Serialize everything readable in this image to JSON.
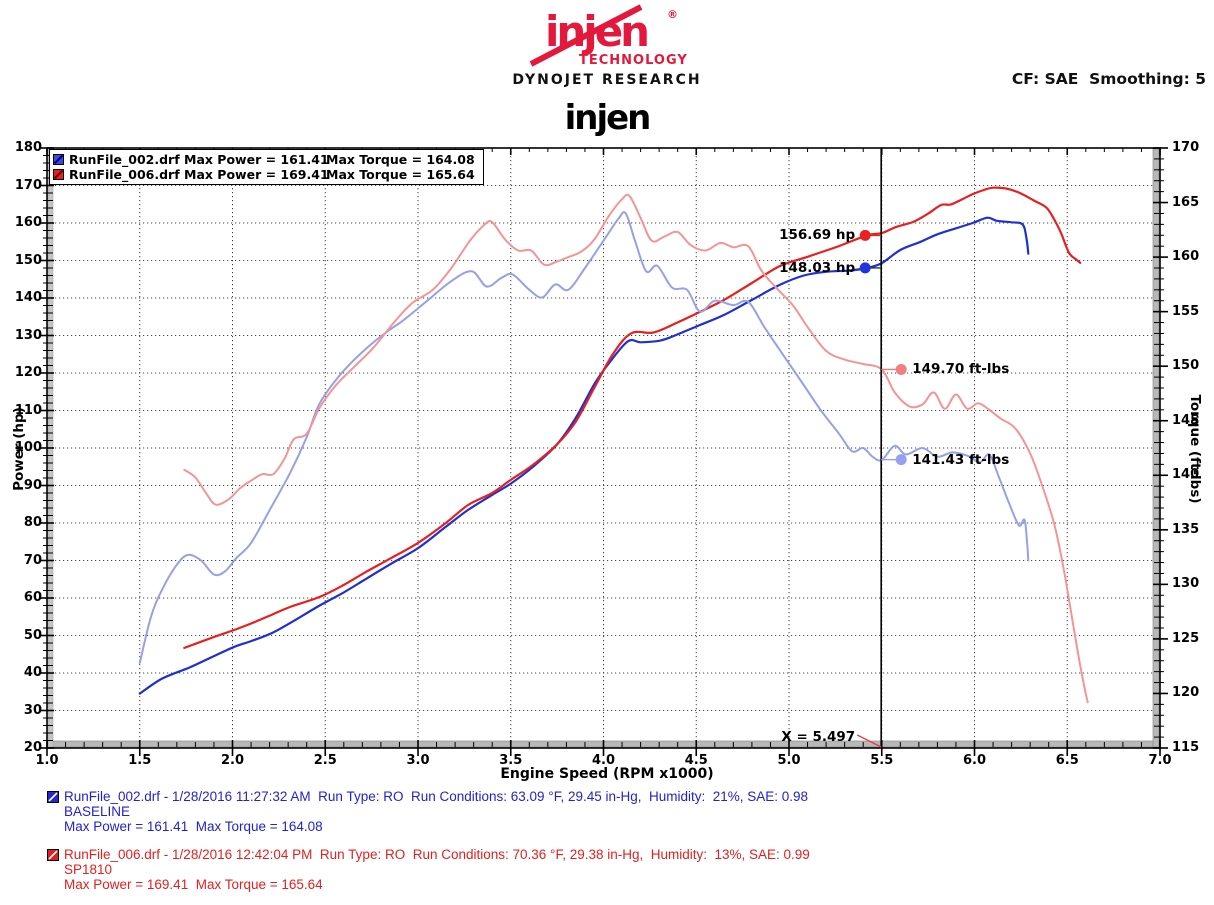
{
  "header": {
    "logo_text": "injen",
    "logo_mark": "®",
    "logo_sub": "TECHNOLOGY",
    "research": "DYNOJET RESEARCH",
    "settings": "CF: SAE  Smoothing: 5",
    "title": "injen",
    "brand_red": "#e4173c"
  },
  "legend": {
    "rows": [
      {
        "label": "RunFile_002.drf Max Power = 161.41",
        "torque_label": "Max Torque = 164.08",
        "icon_color": "#3a4ae0",
        "icon_diag": "#000078"
      },
      {
        "label": "RunFile_006.drf Max Power = 169.41",
        "torque_label": "Max Torque = 165.64",
        "icon_color": "#e82020",
        "icon_diag": "#6e0000"
      }
    ]
  },
  "chart_data": {
    "type": "line",
    "xlabel": "Engine Speed (RPM x1000)",
    "ylabel_left": "Power (hp)",
    "ylabel_right": "Torque (ft-lbs)",
    "x_range": [
      1.0,
      7.0
    ],
    "power_range": [
      20,
      180
    ],
    "torque_range": [
      115,
      170
    ],
    "grid": "dotted",
    "x_tick_labels": [
      "1.0",
      "1.5",
      "2.0",
      "2.5",
      "3.0",
      "3.5",
      "4.0",
      "4.5",
      "5.0",
      "5.5",
      "6.0",
      "6.5",
      "7.0"
    ],
    "power_tick_labels": [
      "20",
      "30",
      "40",
      "50",
      "60",
      "70",
      "80",
      "90",
      "100",
      "110",
      "120",
      "130",
      "140",
      "150",
      "160",
      "170",
      "180"
    ],
    "torque_tick_labels": [
      "115",
      "120",
      "125",
      "130",
      "135",
      "140",
      "145",
      "150",
      "155",
      "160",
      "165",
      "170"
    ],
    "series": [
      {
        "name": "power_baseline",
        "run": "RunFile_002.drf",
        "axis": "power",
        "color": "#2030d0",
        "width": 2.2,
        "max": 161.41,
        "points": [
          [
            1.5,
            34.5
          ],
          [
            1.62,
            38.5
          ],
          [
            1.77,
            41.5
          ],
          [
            1.9,
            44.5
          ],
          [
            2.01,
            47
          ],
          [
            2.1,
            48.5
          ],
          [
            2.21,
            50.6
          ],
          [
            2.31,
            53.3
          ],
          [
            2.47,
            58
          ],
          [
            2.6,
            61.5
          ],
          [
            2.71,
            64.8
          ],
          [
            2.85,
            69
          ],
          [
            3.0,
            73.3
          ],
          [
            3.15,
            79
          ],
          [
            3.27,
            83.5
          ],
          [
            3.4,
            87.5
          ],
          [
            3.5,
            90.5
          ],
          [
            3.62,
            95
          ],
          [
            3.75,
            101
          ],
          [
            3.85,
            108
          ],
          [
            3.95,
            117
          ],
          [
            4.02,
            122
          ],
          [
            4.13,
            128.4
          ],
          [
            4.2,
            128.2
          ],
          [
            4.3,
            128.6
          ],
          [
            4.37,
            129.7
          ],
          [
            4.52,
            132.8
          ],
          [
            4.65,
            135.5
          ],
          [
            4.8,
            139.5
          ],
          [
            4.95,
            143.5
          ],
          [
            5.08,
            146
          ],
          [
            5.2,
            147
          ],
          [
            5.32,
            147.3
          ],
          [
            5.42,
            148.0
          ],
          [
            5.5,
            149.3
          ],
          [
            5.6,
            152.8
          ],
          [
            5.71,
            155
          ],
          [
            5.8,
            157
          ],
          [
            5.9,
            158.6
          ],
          [
            5.99,
            160
          ],
          [
            6.07,
            161.4
          ],
          [
            6.12,
            160.6
          ],
          [
            6.2,
            160.2
          ],
          [
            6.26,
            159.6
          ],
          [
            6.28,
            156
          ],
          [
            6.29,
            151.8
          ]
        ]
      },
      {
        "name": "power_sp1810",
        "run": "RunFile_006.drf",
        "axis": "power",
        "color": "#e81f1f",
        "width": 2.2,
        "max": 169.41,
        "points": [
          [
            1.74,
            46.7
          ],
          [
            1.9,
            49.6
          ],
          [
            2.01,
            51.5
          ],
          [
            2.1,
            53.2
          ],
          [
            2.21,
            55.5
          ],
          [
            2.31,
            57.6
          ],
          [
            2.47,
            60.3
          ],
          [
            2.6,
            63.5
          ],
          [
            2.71,
            66.7
          ],
          [
            2.85,
            70.5
          ],
          [
            3.0,
            74.7
          ],
          [
            3.15,
            80
          ],
          [
            3.27,
            84.8
          ],
          [
            3.4,
            88
          ],
          [
            3.5,
            91.5
          ],
          [
            3.62,
            95.5
          ],
          [
            3.75,
            101
          ],
          [
            3.85,
            107
          ],
          [
            3.95,
            116
          ],
          [
            4.05,
            125
          ],
          [
            4.15,
            130.6
          ],
          [
            4.27,
            130.8
          ],
          [
            4.4,
            133.5
          ],
          [
            4.52,
            136.3
          ],
          [
            4.65,
            139.5
          ],
          [
            4.8,
            144
          ],
          [
            4.95,
            148.5
          ],
          [
            5.1,
            151
          ],
          [
            5.25,
            153.5
          ],
          [
            5.42,
            156.7
          ],
          [
            5.5,
            157.3
          ],
          [
            5.58,
            159
          ],
          [
            5.67,
            160.3
          ],
          [
            5.75,
            162.5
          ],
          [
            5.82,
            164.8
          ],
          [
            5.87,
            164.9
          ],
          [
            5.92,
            166
          ],
          [
            5.99,
            167.7
          ],
          [
            6.05,
            168.8
          ],
          [
            6.1,
            169.4
          ],
          [
            6.17,
            169.2
          ],
          [
            6.24,
            168.1
          ],
          [
            6.32,
            166
          ],
          [
            6.39,
            164
          ],
          [
            6.44,
            160
          ],
          [
            6.47,
            156.9
          ],
          [
            6.51,
            152
          ],
          [
            6.55,
            150.2
          ],
          [
            6.57,
            149.4
          ]
        ]
      },
      {
        "name": "torque_baseline",
        "run": "RunFile_002.drf",
        "axis": "torque",
        "color": "#96a0e8",
        "width": 2,
        "max": 164.08,
        "points": [
          [
            1.5,
            122.8
          ],
          [
            1.56,
            127
          ],
          [
            1.62,
            129.5
          ],
          [
            1.7,
            131.8
          ],
          [
            1.76,
            132.7
          ],
          [
            1.83,
            132.2
          ],
          [
            1.9,
            130.9
          ],
          [
            1.96,
            131.2
          ],
          [
            2.02,
            132.4
          ],
          [
            2.1,
            133.8
          ],
          [
            2.2,
            136.8
          ],
          [
            2.31,
            140.2
          ],
          [
            2.4,
            143.5
          ],
          [
            2.47,
            146.6
          ],
          [
            2.58,
            149.2
          ],
          [
            2.7,
            151.3
          ],
          [
            2.82,
            153
          ],
          [
            2.92,
            154.2
          ],
          [
            3.05,
            156
          ],
          [
            3.18,
            157.8
          ],
          [
            3.29,
            158.7
          ],
          [
            3.37,
            157.3
          ],
          [
            3.45,
            158.1
          ],
          [
            3.51,
            158.4
          ],
          [
            3.6,
            157
          ],
          [
            3.67,
            156.3
          ],
          [
            3.74,
            157.5
          ],
          [
            3.81,
            157.0
          ],
          [
            3.9,
            159
          ],
          [
            4.0,
            161.5
          ],
          [
            4.08,
            163.5
          ],
          [
            4.12,
            164.0
          ],
          [
            4.17,
            161.5
          ],
          [
            4.23,
            158.7
          ],
          [
            4.29,
            159.2
          ],
          [
            4.37,
            157.2
          ],
          [
            4.45,
            157
          ],
          [
            4.52,
            155
          ],
          [
            4.6,
            156
          ],
          [
            4.7,
            155.6
          ],
          [
            4.78,
            155.9
          ],
          [
            4.87,
            153.5
          ],
          [
            4.97,
            151
          ],
          [
            5.07,
            148.5
          ],
          [
            5.17,
            146
          ],
          [
            5.27,
            143.8
          ],
          [
            5.34,
            142.2
          ],
          [
            5.4,
            142.5
          ],
          [
            5.45,
            141.7
          ],
          [
            5.5,
            141.4
          ],
          [
            5.57,
            142.7
          ],
          [
            5.63,
            141.9
          ],
          [
            5.72,
            142.5
          ],
          [
            5.8,
            141.7
          ],
          [
            5.88,
            142.1
          ],
          [
            5.96,
            141.8
          ],
          [
            6.03,
            141.2
          ],
          [
            6.08,
            141.9
          ],
          [
            6.13,
            139.9
          ],
          [
            6.19,
            137.3
          ],
          [
            6.24,
            135.4
          ],
          [
            6.27,
            135.9
          ],
          [
            6.285,
            133.5
          ],
          [
            6.29,
            132.2
          ]
        ]
      },
      {
        "name": "torque_sp1810",
        "run": "RunFile_006.drf",
        "axis": "torque",
        "color": "#f49494",
        "width": 2,
        "max": 165.64,
        "points": [
          [
            1.74,
            140.5
          ],
          [
            1.8,
            139.8
          ],
          [
            1.86,
            138.3
          ],
          [
            1.91,
            137.3
          ],
          [
            1.98,
            137.8
          ],
          [
            2.04,
            138.8
          ],
          [
            2.1,
            139.5
          ],
          [
            2.16,
            140.1
          ],
          [
            2.22,
            140.1
          ],
          [
            2.28,
            141.5
          ],
          [
            2.33,
            143.3
          ],
          [
            2.4,
            143.8
          ],
          [
            2.47,
            146.2
          ],
          [
            2.56,
            148.3
          ],
          [
            2.66,
            150
          ],
          [
            2.76,
            151.7
          ],
          [
            2.87,
            154
          ],
          [
            2.97,
            155.8
          ],
          [
            3.08,
            157
          ],
          [
            3.18,
            159
          ],
          [
            3.28,
            161.5
          ],
          [
            3.36,
            163
          ],
          [
            3.4,
            163.2
          ],
          [
            3.47,
            161.6
          ],
          [
            3.54,
            160.6
          ],
          [
            3.61,
            160.6
          ],
          [
            3.68,
            159.3
          ],
          [
            3.75,
            159.6
          ],
          [
            3.81,
            160
          ],
          [
            3.88,
            160.5
          ],
          [
            3.95,
            161.6
          ],
          [
            4.03,
            163.8
          ],
          [
            4.1,
            165.3
          ],
          [
            4.14,
            165.6
          ],
          [
            4.2,
            163.6
          ],
          [
            4.26,
            161.5
          ],
          [
            4.33,
            161.9
          ],
          [
            4.4,
            162.3
          ],
          [
            4.47,
            161.1
          ],
          [
            4.55,
            160.6
          ],
          [
            4.63,
            161.3
          ],
          [
            4.7,
            160.9
          ],
          [
            4.78,
            161
          ],
          [
            4.85,
            158.8
          ],
          [
            4.93,
            157.2
          ],
          [
            5.02,
            155.6
          ],
          [
            5.1,
            153.6
          ],
          [
            5.2,
            151.4
          ],
          [
            5.3,
            150.6
          ],
          [
            5.4,
            150.2
          ],
          [
            5.5,
            149.7
          ],
          [
            5.57,
            147.6
          ],
          [
            5.65,
            146.3
          ],
          [
            5.72,
            146.5
          ],
          [
            5.78,
            147.6
          ],
          [
            5.84,
            146.1
          ],
          [
            5.9,
            147.4
          ],
          [
            5.96,
            146.1
          ],
          [
            6.02,
            146.6
          ],
          [
            6.08,
            146
          ],
          [
            6.14,
            145.2
          ],
          [
            6.22,
            144.3
          ],
          [
            6.3,
            142
          ],
          [
            6.37,
            138.8
          ],
          [
            6.43,
            135.5
          ],
          [
            6.48,
            131.5
          ],
          [
            6.52,
            127.5
          ],
          [
            6.56,
            123.5
          ],
          [
            6.59,
            120.8
          ],
          [
            6.61,
            119.2
          ]
        ]
      }
    ]
  },
  "annotations": {
    "cursor_rpm": 5.497,
    "cursor_label": "X = 5.497",
    "points": [
      {
        "label": "156.69 hp",
        "value": 156.69,
        "axis": "power",
        "side": "left",
        "dot_color": "#e82222",
        "line_color": "#e82222"
      },
      {
        "label": "148.03 hp",
        "value": 148.03,
        "axis": "power",
        "side": "left",
        "dot_color": "#2233dd",
        "line_color": "#333333"
      },
      {
        "label": "149.70 ft-lbs",
        "value": 149.7,
        "axis": "torque",
        "side": "right",
        "dot_color": "#f08080",
        "line_color": "#e87878"
      },
      {
        "label": "141.43 ft-lbs",
        "value": 141.43,
        "axis": "torque",
        "side": "right",
        "dot_color": "#96a0ee",
        "line_color": "#96a0ee"
      }
    ]
  },
  "info": {
    "runs": [
      {
        "color": "#2222d2",
        "icon_color": "#2828c8",
        "line1": "RunFile_002.drf - 1/28/2016 11:27:32 AM  Run Type: RO  Run Conditions: 63.09 °F, 29.45 in-Hg,  Humidity:  21%, SAE: 0.98",
        "line2": "BASELINE",
        "line3": "Max Power = 161.41  Max Torque = 164.08"
      },
      {
        "color": "#e32020",
        "icon_color": "#e02020",
        "line1": "RunFile_006.drf - 1/28/2016 12:42:04 PM  Run Type: RO  Run Conditions: 70.36 °F, 29.38 in-Hg,  Humidity:  13%, SAE: 0.99",
        "line2": "SP1810",
        "line3": "Max Power = 169.41  Max Torque = 165.64"
      }
    ]
  }
}
